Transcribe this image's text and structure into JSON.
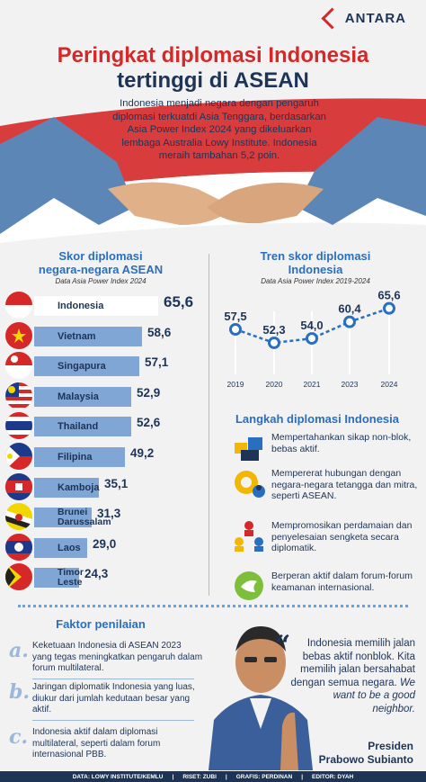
{
  "brand": {
    "logo_text": "ANTARA"
  },
  "header": {
    "title_line1": "Peringkat diplomasi Indonesia",
    "title_line2": "tertinggi di ASEAN",
    "intro": "Indonesia menjadi negara dengan pengaruh diplomasi terkuatdi Asia Tenggara, berdasarkan Asia Power Index 2024 yang dikeluarkan lembaga Australia Lowy Institute. Indonesia meraih tambahan 5,2 poin."
  },
  "colors": {
    "red": "#d62828",
    "navy": "#1d3457",
    "blue": "#2a6fbf",
    "bar": "#7fa6d4"
  },
  "bar_section": {
    "title_line1": "Skor diplomasi",
    "title_line2": "negara-negara ASEAN",
    "subtitle": "Data Asia Power Index 2024"
  },
  "line_section": {
    "title_line1": "Tren skor diplomasi",
    "title_line2": "Indonesia",
    "subtitle": "Data Asia Power Index 2019-2024"
  },
  "chart_data": [
    {
      "type": "bar",
      "orientation": "horizontal",
      "title": "Skor diplomasi negara-negara ASEAN",
      "subtitle": "Data Asia Power Index 2024",
      "categories": [
        "Indonesia",
        "Vietnam",
        "Singapura",
        "Malaysia",
        "Thailand",
        "Filipina",
        "Kamboja",
        "Brunei Darussalam",
        "Laos",
        "Timor Leste"
      ],
      "labels": [
        "65,6",
        "58,6",
        "57,1",
        "52,9",
        "52,6",
        "49,2",
        "35,1",
        "31,3",
        "29,0",
        "24,3"
      ],
      "values": [
        65.6,
        58.6,
        57.1,
        52.9,
        52.6,
        49.2,
        35.1,
        31.3,
        29.0,
        24.3
      ],
      "highlight": "Indonesia"
    },
    {
      "type": "line",
      "title": "Tren skor diplomasi Indonesia",
      "subtitle": "Data Asia Power Index 2019-2024",
      "x": [
        "2019",
        "2020",
        "2021",
        "2023",
        "2024"
      ],
      "labels": [
        "57,5",
        "52,3",
        "54,0",
        "60,4",
        "65,6"
      ],
      "values": [
        57.5,
        52.3,
        54.0,
        60.4,
        65.6
      ],
      "grid": true
    }
  ],
  "steps": {
    "title": "Langkah diplomasi Indonesia",
    "items": [
      {
        "icon": "blocks-icon",
        "text": "Mempertahankan sikap non-blok, bebas aktif."
      },
      {
        "icon": "gear-people-icon",
        "text": "Mempererat hubungan dengan negara-negara tetangga dan mitra, seperti ASEAN."
      },
      {
        "icon": "people-network-icon",
        "text": "Mempromosikan perdamaian dan penyelesaian sengketa secara diplomatik."
      },
      {
        "icon": "dove-icon",
        "text": "Berperan aktif dalam forum-forum keamanan internasional."
      }
    ]
  },
  "faktor": {
    "title": "Faktor penilaian",
    "items": [
      {
        "letter": "a.",
        "text": "Keketuaan Indonesia di ASEAN 2023 yang tegas meningkatkan pengaruh dalam forum multilateral."
      },
      {
        "letter": "b.",
        "text": "Jaringan diplomatik Indonesia yang luas, diukur dari jumlah kedutaan besar yang aktif."
      },
      {
        "letter": "c.",
        "text": "Indonesia aktif dalam diplomasi multilateral, seperti dalam forum internasional PBB."
      }
    ]
  },
  "quote": {
    "text": "Indonesia memilih jalan bebas aktif nonblok. Kita memilih jalan bersahabat dengan semua negara.",
    "text_en": "We want to be a good neighbor.",
    "role": "Presiden",
    "name": "Prabowo Subianto"
  },
  "footer": [
    "DATA: LOWY INSTITUTE/KEMLU",
    "RISET: ZUBI",
    "GRAFIS: PERDINAN",
    "EDITOR: DYAH"
  ]
}
